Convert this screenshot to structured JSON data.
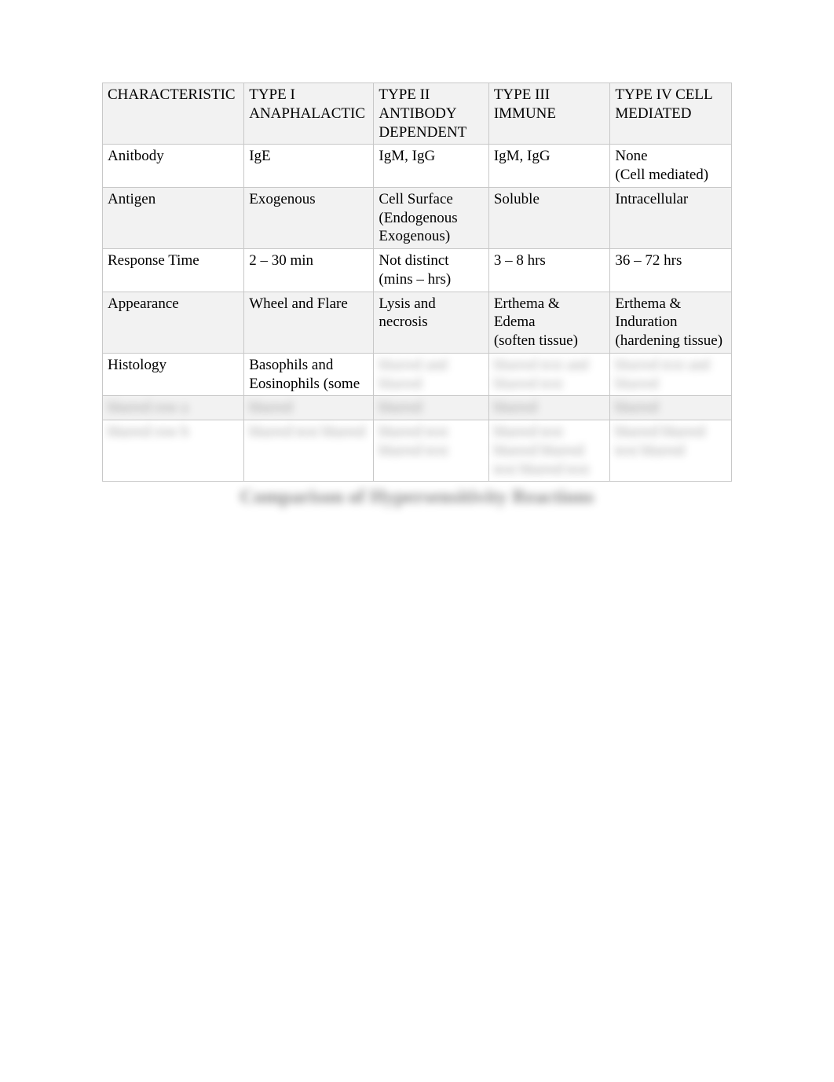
{
  "table": {
    "background_color": "#ffffff",
    "alt_row_color": "#f2f2f2",
    "border_color": "#c8c8c8",
    "text_color": "#000000",
    "font_family": "Times New Roman",
    "font_size_pt": 14,
    "columns": [
      {
        "key": "characteristic",
        "header": "CHARACTERISTIC",
        "width_pct": 21
      },
      {
        "key": "type1",
        "header": "TYPE I ANAPHALACTIC",
        "width_pct": 19
      },
      {
        "key": "type2",
        "header": "TYPE II ANTIBODY DEPENDENT",
        "width_pct": 18
      },
      {
        "key": "type3",
        "header": "TYPE III IMMUNE",
        "width_pct": 19
      },
      {
        "key": "type4",
        "header": "TYPE IV CELL MEDIATED",
        "width_pct": 19
      }
    ],
    "rows": [
      {
        "label": "Anitbody",
        "type1": "IgE",
        "type2": "IgM, IgG",
        "type3": "IgM, IgG",
        "type4": "None\n(Cell mediated)"
      },
      {
        "label": "Antigen",
        "type1": "Exogenous",
        "type2": "Cell Surface (Endogenous Exogenous)",
        "type3": "Soluble",
        "type4": "Intracellular"
      },
      {
        "label": "Response Time",
        "type1": "2 – 30 min",
        "type2": "Not distinct (mins – hrs)",
        "type3": "3 – 8 hrs",
        "type4": "36 – 72 hrs"
      },
      {
        "label": "Appearance",
        "type1": "Wheel and Flare",
        "type2": "Lysis and necrosis",
        "type3": "Erthema  & Edema\n(soften tissue)",
        "type4": "Erthema & Induration (hardening tissue)"
      },
      {
        "label": "Histology",
        "type1": "Basophils and Eosinophils (some",
        "type2": "",
        "type3": "",
        "type4": ""
      }
    ],
    "blurred_rows": [
      {
        "label": "blurred row a",
        "type1": "blurred",
        "type2": "blurred",
        "type3": "blurred",
        "type4": "blurred"
      },
      {
        "label": "blurred row b",
        "type1": "blurred text blurred",
        "type2": "blurred text blurred text",
        "type3": "blurred text blurred blurred text blurred text",
        "type4": "blurred blurred text blurred"
      }
    ],
    "blurred_histology_cells": {
      "type2": "blurred and blurred",
      "type3": "blurred text and blurred text",
      "type4": "blurred text and blurred"
    }
  },
  "caption": "Comparison of Hypersensitivity Reactions"
}
